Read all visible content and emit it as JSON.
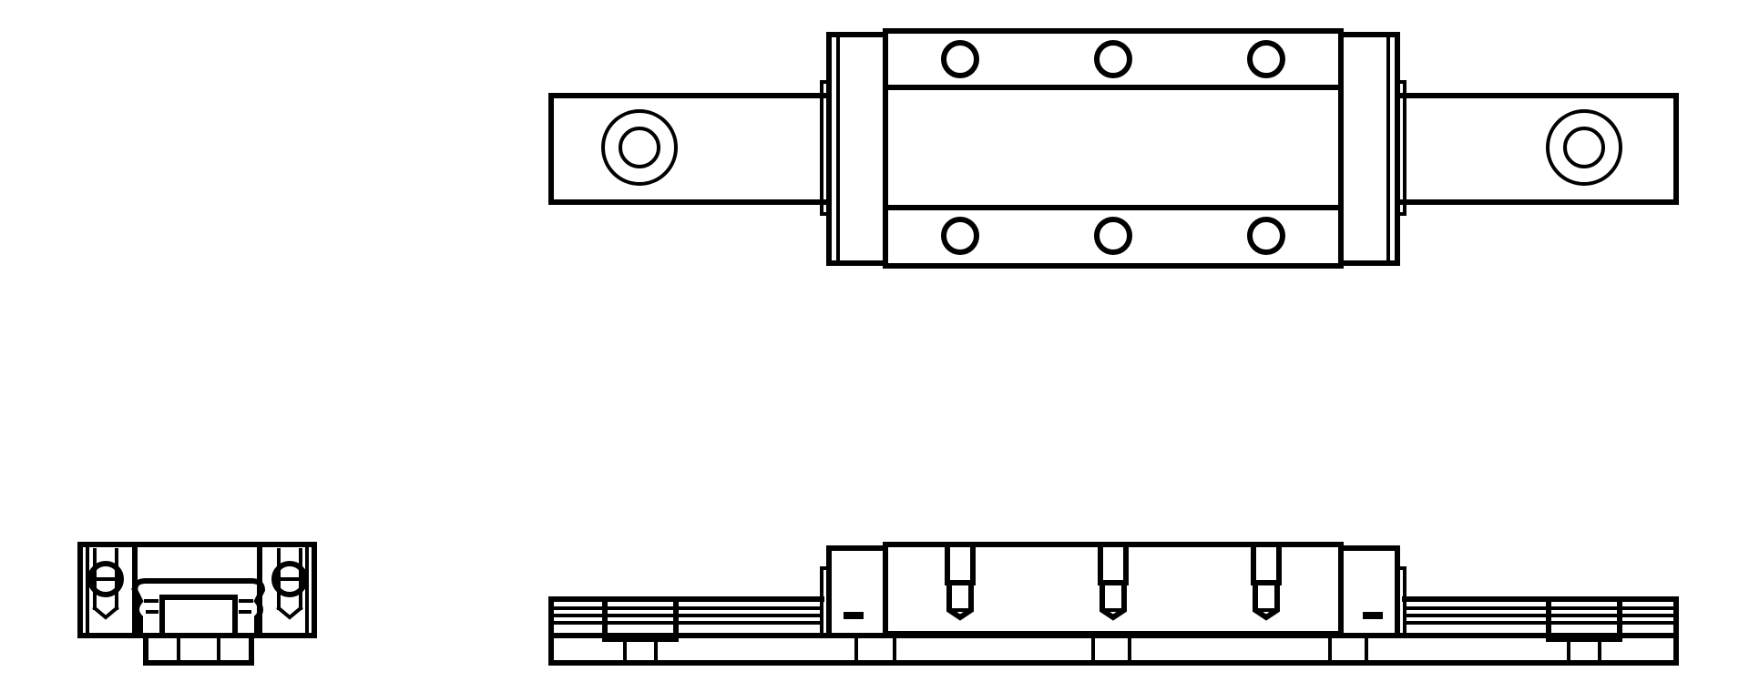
{
  "drawing": {
    "subject": "linear-guide-carriage-and-rail",
    "views": {
      "top": {
        "bolt_holes_per_row": 3,
        "bolt_rows": 2,
        "rail_mount_holes": 2
      },
      "end": {},
      "side": {
        "counterbores": 3,
        "rail_mount_holes": 2
      }
    }
  },
  "colors": {
    "line": "#000000",
    "background": "#ffffff"
  }
}
